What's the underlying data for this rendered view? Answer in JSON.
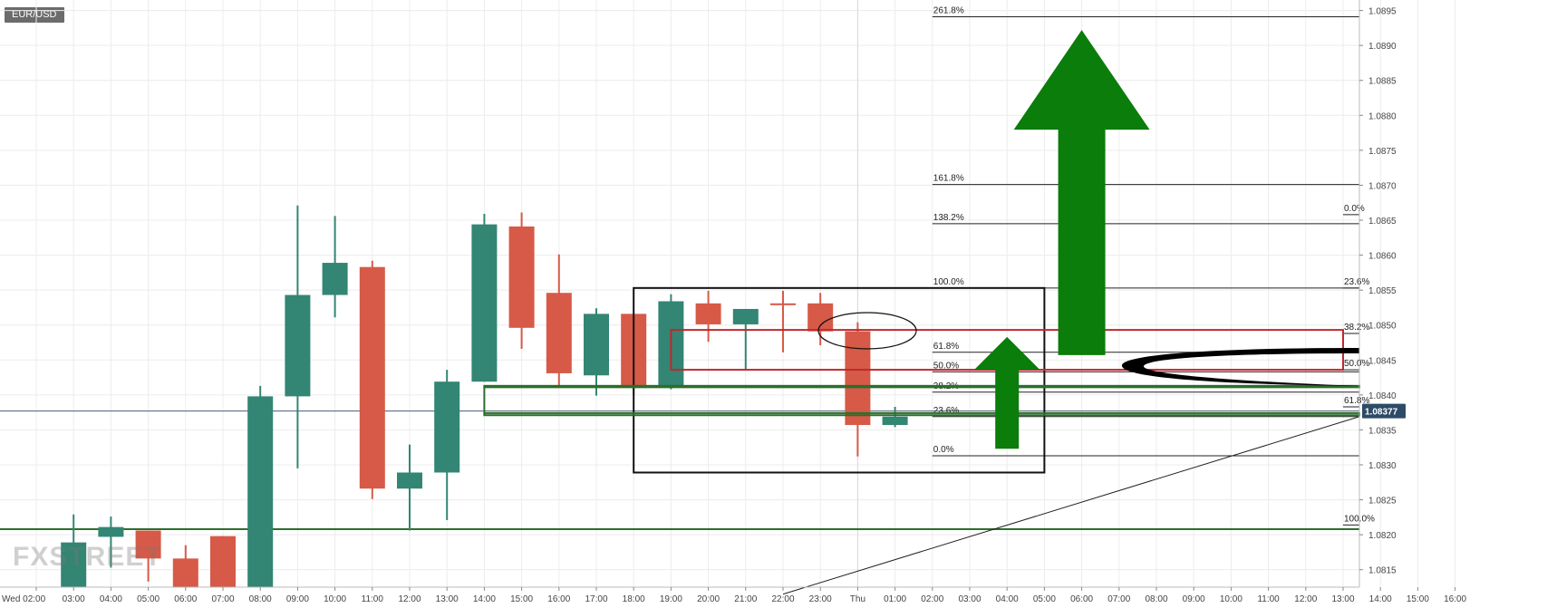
{
  "symbol": "EUR/USD",
  "watermark": "FXSTREET",
  "colors": {
    "bull": "#338574",
    "bear": "#d65a47",
    "grid": "#ececec",
    "axis_text": "#444444",
    "price_tag": "#2d4a67",
    "arrow": "#0a7d0a",
    "box_black": "#111111",
    "box_red": "#c0282d",
    "box_green": "#2c6e2c"
  },
  "chart_data": {
    "type": "candlestick",
    "x_ticks": [
      "Wed 02:00",
      "03:00",
      "04:00",
      "05:00",
      "06:00",
      "07:00",
      "08:00",
      "09:00",
      "10:00",
      "11:00",
      "12:00",
      "13:00",
      "14:00",
      "15:00",
      "16:00",
      "17:00",
      "18:00",
      "19:00",
      "20:00",
      "21:00",
      "22:00",
      "23:00",
      "Thu",
      "01:00",
      "02:00",
      "03:00",
      "04:00",
      "05:00",
      "06:00",
      "07:00",
      "08:00",
      "09:00",
      "10:00",
      "11:00",
      "12:00",
      "13:00",
      "14:00",
      "15:00",
      "16:00"
    ],
    "y_ticks": [
      "1.0815",
      "1.0820",
      "1.0825",
      "1.0830",
      "1.0835",
      "1.0840",
      "1.0845",
      "1.0850",
      "1.0855",
      "1.0860",
      "1.0865",
      "1.0870",
      "1.0875",
      "1.0880",
      "1.0885",
      "1.0890",
      "1.0895"
    ],
    "ylim": [
      1.08125,
      1.08965
    ],
    "current_price_label": "1.08377",
    "current_price": 1.08377,
    "candles": [
      {
        "t": "03:00",
        "o": 1.08125,
        "h": 1.08229,
        "l": 1.08125,
        "c": 1.08189
      },
      {
        "t": "04:00",
        "o": 1.08197,
        "h": 1.08226,
        "l": 1.08153,
        "c": 1.08211
      },
      {
        "t": "05:00",
        "o": 1.08206,
        "h": 1.08206,
        "l": 1.08133,
        "c": 1.08166
      },
      {
        "t": "06:00",
        "o": 1.08166,
        "h": 1.08185,
        "l": 1.08125,
        "c": 1.08125
      },
      {
        "t": "07:00",
        "o": 1.08198,
        "h": 1.08198,
        "l": 1.08125,
        "c": 1.08125
      },
      {
        "t": "08:00",
        "o": 1.08125,
        "h": 1.08413,
        "l": 1.08125,
        "c": 1.08398
      },
      {
        "t": "09:00",
        "o": 1.08398,
        "h": 1.08671,
        "l": 1.08295,
        "c": 1.08543
      },
      {
        "t": "10:00",
        "o": 1.08543,
        "h": 1.08656,
        "l": 1.08511,
        "c": 1.08589
      },
      {
        "t": "11:00",
        "o": 1.08583,
        "h": 1.08592,
        "l": 1.08251,
        "c": 1.08266
      },
      {
        "t": "12:00",
        "o": 1.08266,
        "h": 1.08329,
        "l": 1.08206,
        "c": 1.08289
      },
      {
        "t": "13:00",
        "o": 1.08289,
        "h": 1.08436,
        "l": 1.08221,
        "c": 1.08419
      },
      {
        "t": "14:00",
        "o": 1.08419,
        "h": 1.08659,
        "l": 1.08419,
        "c": 1.08644
      },
      {
        "t": "15:00",
        "o": 1.08641,
        "h": 1.08661,
        "l": 1.08466,
        "c": 1.08496
      },
      {
        "t": "16:00",
        "o": 1.08546,
        "h": 1.08601,
        "l": 1.08411,
        "c": 1.08431
      },
      {
        "t": "17:00",
        "o": 1.08428,
        "h": 1.08524,
        "l": 1.08399,
        "c": 1.08516
      },
      {
        "t": "18:00",
        "o": 1.08516,
        "h": 1.08516,
        "l": 1.08401,
        "c": 1.08413
      },
      {
        "t": "19:00",
        "o": 1.08413,
        "h": 1.08544,
        "l": 1.08408,
        "c": 1.08534
      },
      {
        "t": "20:00",
        "o": 1.08531,
        "h": 1.08549,
        "l": 1.08476,
        "c": 1.08501
      },
      {
        "t": "21:00",
        "o": 1.08501,
        "h": 1.08523,
        "l": 1.08437,
        "c": 1.08523
      },
      {
        "t": "22:00",
        "o": 1.08531,
        "h": 1.08549,
        "l": 1.08461,
        "c": 1.08529
      },
      {
        "t": "23:00",
        "o": 1.08531,
        "h": 1.08546,
        "l": 1.08471,
        "c": 1.08491
      },
      {
        "t": "Thu",
        "o": 1.08491,
        "h": 1.08504,
        "l": 1.08312,
        "c": 1.08357
      },
      {
        "t": "01:00",
        "o": 1.08357,
        "h": 1.08383,
        "l": 1.08354,
        "c": 1.08369
      }
    ],
    "fib_left": {
      "label_x": "02:00",
      "x_range": [
        "02:00",
        "Right edge"
      ],
      "levels": [
        {
          "label": "261.8%",
          "price": 1.08941
        },
        {
          "label": "161.8%",
          "price": 1.08701
        },
        {
          "label": "138.2%",
          "price": 1.08645
        },
        {
          "label": "100.0%",
          "price": 1.08553
        },
        {
          "label": "61.8%",
          "price": 1.08461
        },
        {
          "label": "50.0%",
          "price": 1.08433
        },
        {
          "label": "38.2%",
          "price": 1.08404
        },
        {
          "label": "23.6%",
          "price": 1.08369
        },
        {
          "label": "0.0%",
          "price": 1.08313
        }
      ]
    },
    "fib_right": {
      "label_x": "13:00",
      "x_range": [
        "13:00",
        "Right edge"
      ],
      "levels": [
        {
          "label": "0.0%",
          "price": 1.08658
        },
        {
          "label": "23.6%",
          "price": 1.08553
        },
        {
          "label": "38.2%",
          "price": 1.08488
        },
        {
          "label": "50.0%",
          "price": 1.08436
        },
        {
          "label": "61.8%",
          "price": 1.08383
        },
        {
          "label": "100.0%",
          "price": 1.08214
        }
      ]
    },
    "support_line_price": 1.08208,
    "trendline": [
      {
        "t": "22:00",
        "price": 1.08115
      },
      {
        "t": "Right edge",
        "price": 1.08369
      }
    ],
    "annotations": {
      "black_box": {
        "x": [
          "18:00",
          "05:00"
        ],
        "price": [
          1.08553,
          1.08289
        ]
      },
      "red_box": {
        "x": [
          "19:00",
          "13:00"
        ],
        "price": [
          1.08493,
          1.08436
        ]
      },
      "green_box_upper": {
        "x": [
          "14:00",
          "Right edge"
        ],
        "price": [
          1.08413,
          1.08411
        ]
      },
      "green_box_lower": {
        "x": [
          "14:00",
          "Right edge"
        ],
        "price": [
          1.08374,
          1.08371
        ]
      },
      "big_up_arrow": {
        "x": "06:00",
        "base": 1.08457,
        "tip": 1.08922
      },
      "small_up_arrow": {
        "x": "04:00",
        "base": 1.08323,
        "tip": 1.08483
      }
    }
  }
}
